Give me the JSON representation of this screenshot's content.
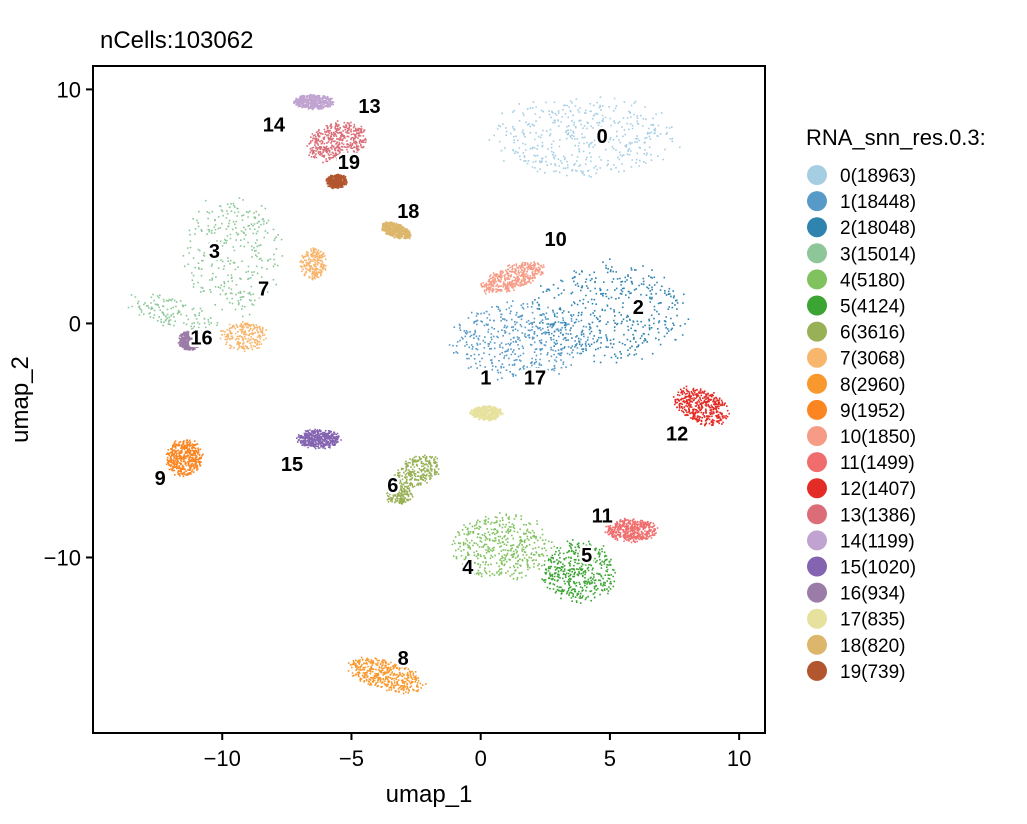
{
  "chart_data": {
    "type": "scatter",
    "title": "nCells:103062",
    "xlabel": "umap_1",
    "ylabel": "umap_2",
    "xlim": [
      -15,
      11
    ],
    "ylim": [
      -17.5,
      11
    ],
    "x_ticks": [
      -10,
      -5,
      0,
      5,
      10
    ],
    "y_ticks": [
      10,
      0,
      -10
    ],
    "x_tick_labels": [
      "−10",
      "−5",
      "0",
      "5",
      "10"
    ],
    "y_tick_labels": [
      "10",
      "0",
      "−10"
    ],
    "grid": false,
    "legend_title": "RNA_snn_res.0.3:",
    "legend_position": "right",
    "clusters": [
      {
        "id": "0",
        "legend": "0(18963)",
        "color": "#a6cee3",
        "label_x": 4.7,
        "label_y": 8.0,
        "blobs": [
          [
            4.0,
            8.0,
            3.6,
            1.7,
            0,
            1
          ]
        ]
      },
      {
        "id": "1",
        "legend": "1(18448)",
        "color": "#5799c7",
        "label_x": 0.2,
        "label_y": -2.3,
        "blobs": [
          [
            1.5,
            -0.7,
            2.7,
            1.6,
            0,
            1
          ]
        ]
      },
      {
        "id": "2",
        "legend": "2(18048)",
        "color": "#2f83af",
        "label_x": 6.1,
        "label_y": 0.7,
        "blobs": [
          [
            5.0,
            0.5,
            3.0,
            2.1,
            0,
            1
          ]
        ]
      },
      {
        "id": "3",
        "legend": "3(15014)",
        "color": "#8dc799",
        "label_x": -10.3,
        "label_y": 3.1,
        "blobs": [
          [
            -9.6,
            3.0,
            1.9,
            2.5,
            0,
            0.7
          ],
          [
            -12.0,
            0.5,
            1.8,
            0.6,
            -0.3,
            0.3
          ]
        ]
      },
      {
        "id": "4",
        "legend": "4(5180)",
        "color": "#7fc25e",
        "label_x": -0.5,
        "label_y": -10.4,
        "blobs": [
          [
            0.8,
            -9.5,
            1.9,
            1.4,
            0,
            1
          ]
        ]
      },
      {
        "id": "5",
        "legend": "5(4124)",
        "color": "#3ba432",
        "label_x": 4.1,
        "label_y": -9.9,
        "blobs": [
          [
            3.8,
            -10.6,
            1.4,
            1.3,
            0,
            1
          ]
        ]
      },
      {
        "id": "6",
        "legend": "6(3616)",
        "color": "#98b056",
        "label_x": -3.4,
        "label_y": -6.9,
        "blobs": [
          [
            -2.5,
            -6.3,
            1.0,
            0.6,
            0.5,
            0.6
          ],
          [
            -3.2,
            -7.3,
            0.5,
            0.4,
            0,
            0.4
          ]
        ]
      },
      {
        "id": "7",
        "legend": "7(3068)",
        "color": "#f8b56c",
        "label_x": -8.4,
        "label_y": 1.5,
        "blobs": [
          [
            -9.2,
            -0.5,
            0.9,
            0.6,
            0,
            0.5
          ],
          [
            -6.5,
            2.6,
            0.5,
            0.7,
            0,
            0.5
          ]
        ]
      },
      {
        "id": "8",
        "legend": "8(2960)",
        "color": "#f9982c",
        "label_x": -3.0,
        "label_y": -14.3,
        "blobs": [
          [
            -3.7,
            -15.0,
            1.5,
            0.6,
            -0.3,
            1
          ]
        ]
      },
      {
        "id": "9",
        "legend": "9(1952)",
        "color": "#fb8520",
        "label_x": -12.4,
        "label_y": -6.6,
        "blobs": [
          [
            -11.5,
            -5.7,
            0.7,
            0.8,
            0,
            1
          ]
        ]
      },
      {
        "id": "10",
        "legend": "10(1850)",
        "color": "#f69c86",
        "label_x": 2.9,
        "label_y": 3.6,
        "blobs": [
          [
            1.2,
            2.0,
            1.3,
            0.5,
            0.4,
            1
          ]
        ]
      },
      {
        "id": "11",
        "legend": "11(1499)",
        "color": "#ef6e6d",
        "label_x": 4.7,
        "label_y": -8.2,
        "blobs": [
          [
            5.8,
            -8.8,
            1.0,
            0.5,
            0,
            1
          ]
        ]
      },
      {
        "id": "12",
        "legend": "12(1407)",
        "color": "#e42c26",
        "label_x": 7.6,
        "label_y": -4.7,
        "blobs": [
          [
            8.5,
            -3.5,
            1.1,
            0.7,
            -0.5,
            1
          ]
        ]
      },
      {
        "id": "13",
        "legend": "13(1386)",
        "color": "#da6d77",
        "label_x": -4.3,
        "label_y": 9.3,
        "blobs": [
          [
            -5.6,
            7.8,
            1.2,
            0.8,
            0.3,
            1
          ]
        ]
      },
      {
        "id": "14",
        "legend": "14(1199)",
        "color": "#c0a3d0",
        "label_x": -8.0,
        "label_y": 8.5,
        "blobs": [
          [
            -6.5,
            9.5,
            0.8,
            0.3,
            0,
            1
          ]
        ]
      },
      {
        "id": "15",
        "legend": "15(1020)",
        "color": "#8463b1",
        "label_x": -7.3,
        "label_y": -6.0,
        "blobs": [
          [
            -6.3,
            -4.9,
            0.8,
            0.4,
            0,
            1
          ]
        ]
      },
      {
        "id": "16",
        "legend": "16(934)",
        "color": "#9b7ba7",
        "label_x": -10.8,
        "label_y": -0.6,
        "blobs": [
          [
            -11.3,
            -0.7,
            0.4,
            0.4,
            0,
            1
          ]
        ]
      },
      {
        "id": "17",
        "legend": "17(835)",
        "color": "#e7e19e",
        "label_x": 2.1,
        "label_y": -2.3,
        "blobs": [
          [
            0.2,
            -3.8,
            0.6,
            0.3,
            0,
            1
          ]
        ]
      },
      {
        "id": "18",
        "legend": "18(820)",
        "color": "#dcb66a",
        "label_x": -2.8,
        "label_y": 4.8,
        "blobs": [
          [
            -3.3,
            4.0,
            0.6,
            0.3,
            -0.4,
            1
          ]
        ]
      },
      {
        "id": "19",
        "legend": "19(739)",
        "color": "#b1562e",
        "label_x": -5.1,
        "label_y": 6.9,
        "blobs": [
          [
            -5.6,
            6.1,
            0.4,
            0.3,
            0,
            1
          ]
        ]
      }
    ]
  }
}
